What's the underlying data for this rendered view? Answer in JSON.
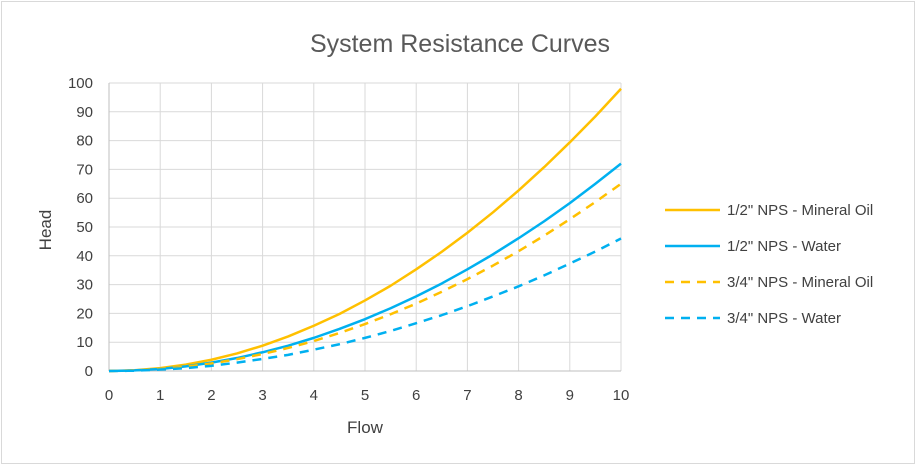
{
  "chart_data": {
    "type": "line",
    "title": "System Resistance Curves",
    "xlabel": "Flow",
    "ylabel": "Head",
    "xlim": [
      0,
      10
    ],
    "ylim": [
      0,
      100
    ],
    "x_ticks": [
      0,
      1,
      2,
      3,
      4,
      5,
      6,
      7,
      8,
      9,
      10
    ],
    "y_ticks": [
      0,
      10,
      20,
      30,
      40,
      50,
      60,
      70,
      80,
      90,
      100
    ],
    "grid": true,
    "legend_position": "right",
    "x": [
      0,
      0.5,
      1,
      1.5,
      2,
      2.5,
      3,
      3.5,
      4,
      4.5,
      5,
      5.5,
      6,
      6.5,
      7,
      7.5,
      8,
      8.5,
      9,
      9.5,
      10
    ],
    "series": [
      {
        "name": "1/2\" NPS - Mineral Oil",
        "color": "#FFC000",
        "dash": "solid",
        "values": [
          0,
          0.25,
          1,
          2.2,
          3.9,
          6.1,
          8.8,
          12,
          15.7,
          19.8,
          24.5,
          29.6,
          35.3,
          41.4,
          48,
          55.1,
          62.7,
          70.8,
          79.4,
          88.4,
          98
        ]
      },
      {
        "name": "1/2\" NPS - Water",
        "color": "#00B0F0",
        "dash": "solid",
        "values": [
          0,
          0.2,
          0.7,
          1.6,
          2.9,
          4.5,
          6.5,
          8.8,
          11.5,
          14.6,
          18,
          21.8,
          25.9,
          30.4,
          35.3,
          40.5,
          46.1,
          52,
          58.3,
          65,
          72
        ]
      },
      {
        "name": "3/4\" NPS - Mineral Oil",
        "color": "#FFC000",
        "dash": "dashed",
        "values": [
          0,
          0.2,
          0.65,
          1.5,
          2.6,
          4.1,
          5.9,
          8,
          10.4,
          13.2,
          16.3,
          19.7,
          23.4,
          27.5,
          31.9,
          36.6,
          41.6,
          47,
          52.7,
          58.7,
          65
        ]
      },
      {
        "name": "3/4\" NPS - Water",
        "color": "#00B0F0",
        "dash": "dashed",
        "values": [
          0,
          0.1,
          0.5,
          1,
          1.8,
          2.9,
          4.2,
          5.6,
          7.4,
          9.3,
          11.5,
          13.9,
          16.6,
          19.4,
          22.5,
          25.9,
          29.4,
          33.2,
          37.3,
          41.5,
          46
        ]
      }
    ]
  }
}
